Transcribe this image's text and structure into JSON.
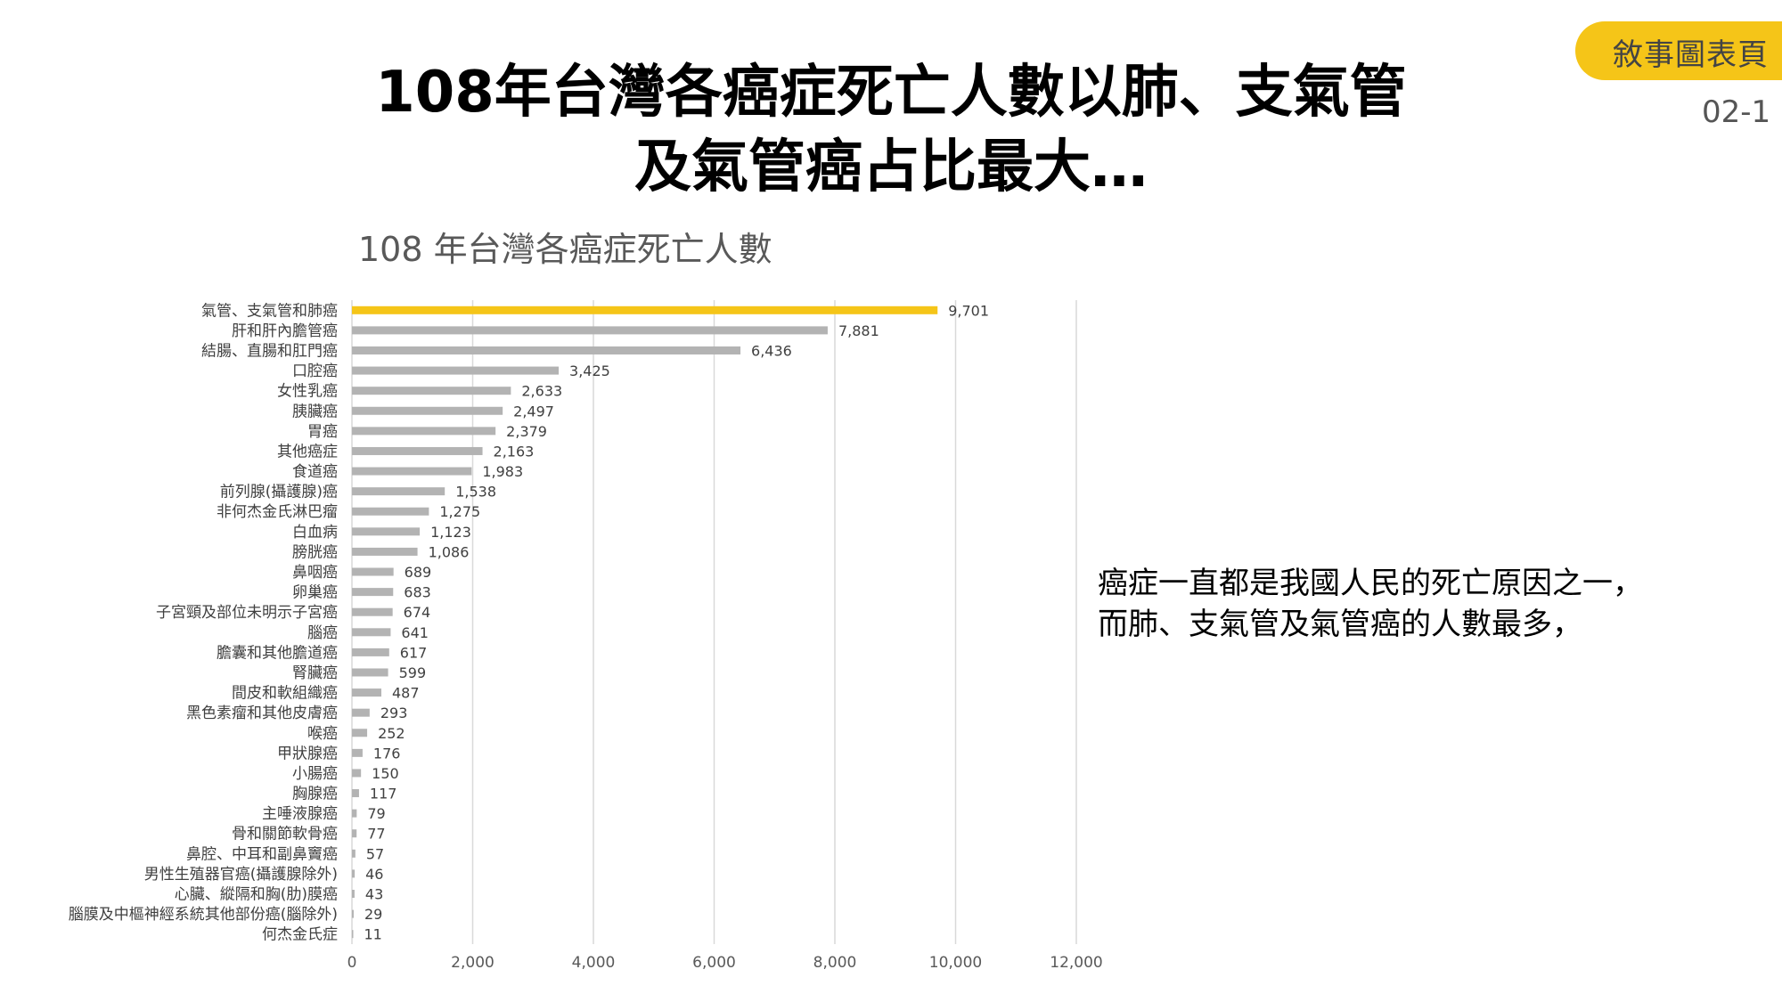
{
  "badge": {
    "label": "敘事圖表頁",
    "page": "02-1"
  },
  "headline": {
    "line1": "108年台灣各癌症死亡人數以肺、支氣管",
    "line2": "及氣管癌占比最大…"
  },
  "note": {
    "line1": "癌症一直都是我國人民的死亡原因之一，",
    "line2": "而肺、支氣管及氣管癌的人數最多，"
  },
  "colors": {
    "highlight": "#f5c518",
    "bar": "#b3b3b3",
    "grid": "#d9d9d9",
    "badge": "#f5c518"
  },
  "chart_data": {
    "type": "bar",
    "orientation": "horizontal",
    "title": "108 年台灣各癌症死亡人數",
    "xlim": [
      0,
      12000
    ],
    "xticks": [
      "0",
      "2,000",
      "4,000",
      "6,000",
      "8,000",
      "10,000",
      "12,000"
    ],
    "grid": true,
    "highlight_index": 0,
    "categories": [
      "氣管、支氣管和肺癌",
      "肝和肝內膽管癌",
      "結腸、直腸和肛門癌",
      "口腔癌",
      "女性乳癌",
      "胰臟癌",
      "胃癌",
      "其他癌症",
      "食道癌",
      "前列腺(攝護腺)癌",
      "非何杰金氏淋巴瘤",
      "白血病",
      "膀胱癌",
      "鼻咽癌",
      "卵巢癌",
      "子宮頸及部位未明示子宮癌",
      "腦癌",
      "膽囊和其他膽道癌",
      "腎臟癌",
      "間皮和軟組織癌",
      "黑色素瘤和其他皮膚癌",
      "喉癌",
      "甲狀腺癌",
      "小腸癌",
      "胸腺癌",
      "主唾液腺癌",
      "骨和關節軟骨癌",
      "鼻腔、中耳和副鼻竇癌",
      "男性生殖器官癌(攝護腺除外)",
      "心臟、縱隔和胸(肋)膜癌",
      "腦膜及中樞神經系統其他部份癌(腦除外)",
      "何杰金氏症"
    ],
    "values": [
      9701,
      7881,
      6436,
      3425,
      2633,
      2497,
      2379,
      2163,
      1983,
      1538,
      1275,
      1123,
      1086,
      689,
      683,
      674,
      641,
      617,
      599,
      487,
      293,
      252,
      176,
      150,
      117,
      79,
      77,
      57,
      46,
      43,
      29,
      11
    ],
    "labels": [
      "9,701",
      "7,881",
      "6,436",
      "3,425",
      "2,633",
      "2,497",
      "2,379",
      "2,163",
      "1,983",
      "1,538",
      "1,275",
      "1,123",
      "1,086",
      "689",
      "683",
      "674",
      "641",
      "617",
      "599",
      "487",
      "293",
      "252",
      "176",
      "150",
      "117",
      "79",
      "77",
      "57",
      "46",
      "43",
      "29",
      "11"
    ]
  }
}
